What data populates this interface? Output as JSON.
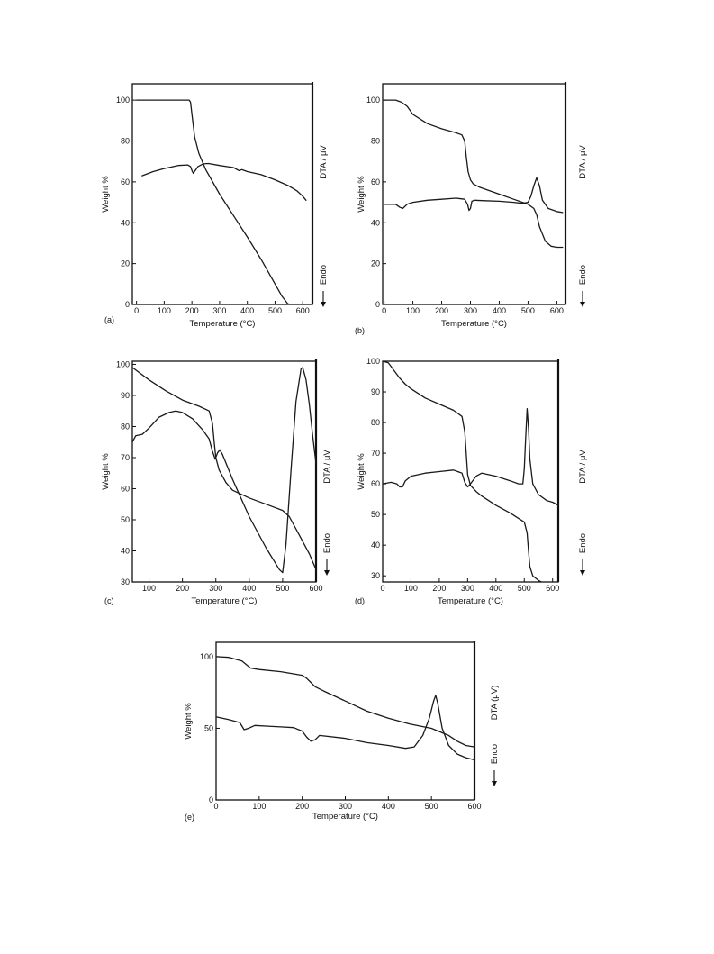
{
  "chart_data": [
    {
      "type": "line",
      "panel_label": "(a)",
      "xlabel": "Temperature (°C)",
      "ylabel": "Weight %",
      "right_label": "DTA / μV",
      "endo_label": "Endo",
      "xlim": [
        -15,
        635
      ],
      "ylim": [
        0,
        108
      ],
      "xticks": [
        0,
        100,
        200,
        300,
        400,
        500,
        600
      ],
      "yticks": [
        0,
        20,
        40,
        60,
        80,
        100
      ],
      "series": [
        {
          "kind": "tga",
          "x": [
            0,
            100,
            190,
            195,
            200,
            210,
            225,
            250,
            300,
            350,
            400,
            450,
            500,
            525,
            545,
            552
          ],
          "y": [
            100,
            100,
            100,
            99,
            93,
            82,
            74,
            66,
            54,
            43.5,
            33,
            22,
            10,
            4,
            0.5,
            0
          ]
        },
        {
          "kind": "dta",
          "x": [
            20,
            60,
            100,
            150,
            185,
            195,
            200,
            205,
            212,
            222,
            240,
            260,
            300,
            350,
            370,
            380,
            400,
            450,
            500,
            550,
            580,
            600,
            612
          ],
          "y": [
            63,
            65,
            66.5,
            68,
            68.3,
            67.5,
            65.5,
            64.2,
            65.5,
            67.5,
            68.8,
            69,
            68,
            67,
            65.5,
            66,
            65,
            63.5,
            61,
            58,
            55.5,
            53,
            51
          ]
        }
      ]
    },
    {
      "type": "line",
      "panel_label": "(b)",
      "xlabel": "Temperature (°C)",
      "ylabel": "Weight %",
      "right_label": "DTA / μV",
      "endo_label": "Endo",
      "xlim": [
        -5,
        630
      ],
      "ylim": [
        0,
        108
      ],
      "xticks": [
        0,
        100,
        200,
        300,
        400,
        500,
        600
      ],
      "yticks": [
        0,
        20,
        40,
        60,
        80,
        100
      ],
      "series": [
        {
          "kind": "tga",
          "x": [
            0,
            40,
            60,
            80,
            100,
            150,
            200,
            250,
            270,
            280,
            285,
            292,
            300,
            310,
            330,
            400,
            450,
            500,
            520,
            530,
            540,
            560,
            580,
            600,
            620
          ],
          "y": [
            100,
            100,
            99,
            97,
            93,
            88.5,
            86,
            84,
            83,
            80,
            73,
            65,
            61,
            59,
            57.5,
            54,
            51.5,
            49,
            47,
            44,
            38,
            31,
            28.5,
            28,
            28
          ]
        },
        {
          "kind": "dta",
          "x": [
            0,
            40,
            55,
            65,
            80,
            100,
            150,
            200,
            250,
            280,
            290,
            295,
            300,
            305,
            315,
            350,
            400,
            450,
            480,
            500,
            510,
            520,
            530,
            540,
            550,
            570,
            600,
            620
          ],
          "y": [
            49,
            49,
            47.5,
            47,
            49,
            50,
            51,
            51.5,
            52,
            51.5,
            49,
            46,
            47,
            50.5,
            51,
            50.8,
            50.5,
            50,
            49.5,
            50,
            53,
            58,
            62,
            58,
            51,
            47,
            45.5,
            45
          ]
        }
      ]
    },
    {
      "type": "line",
      "panel_label": "(c)",
      "xlabel": "Temperature (°C)",
      "ylabel": "Weight %",
      "right_label": "DTA / μV",
      "endo_label": "Endo",
      "xlim": [
        50,
        600
      ],
      "ylim": [
        30,
        101
      ],
      "xticks": [
        100,
        200,
        300,
        400,
        500,
        600
      ],
      "yticks": [
        30,
        40,
        50,
        60,
        70,
        80,
        90,
        100
      ],
      "series": [
        {
          "kind": "tga",
          "x": [
            50,
            100,
            150,
            200,
            250,
            280,
            290,
            295,
            300,
            310,
            330,
            350,
            400,
            450,
            500,
            520,
            550,
            580,
            600
          ],
          "y": [
            99,
            95,
            91.5,
            88.5,
            86.5,
            85,
            81,
            75,
            70,
            66,
            62,
            59.5,
            57,
            55,
            53,
            51,
            45,
            39,
            34
          ]
        },
        {
          "kind": "dta",
          "x": [
            50,
            60,
            80,
            100,
            130,
            160,
            180,
            200,
            230,
            260,
            280,
            290,
            298,
            305,
            312,
            320,
            350,
            400,
            450,
            490,
            500,
            510,
            525,
            540,
            555,
            560,
            570,
            580,
            590,
            600
          ],
          "y": [
            75,
            77,
            77.5,
            79.5,
            83,
            84.5,
            85,
            84.5,
            82.5,
            79,
            76,
            72,
            69.5,
            71.5,
            72.5,
            71,
            63,
            51,
            41,
            34,
            33,
            42,
            66,
            88,
            98.5,
            99,
            95,
            87,
            77,
            68
          ]
        }
      ]
    },
    {
      "type": "line",
      "panel_label": "(d)",
      "xlabel": "Temperature (°C)",
      "ylabel": "Weight %",
      "right_label": "DTA / μV",
      "endo_label": "Endo",
      "xlim": [
        0,
        620
      ],
      "ylim": [
        28,
        100
      ],
      "xticks": [
        0,
        100,
        200,
        300,
        400,
        500,
        600
      ],
      "yticks": [
        30,
        40,
        50,
        60,
        70,
        80,
        90,
        100
      ],
      "series": [
        {
          "kind": "tga",
          "x": [
            0,
            20,
            40,
            60,
            80,
            100,
            150,
            200,
            250,
            280,
            290,
            295,
            300,
            310,
            330,
            350,
            400,
            450,
            500,
            510,
            515,
            520,
            530,
            550,
            560
          ],
          "y": [
            100,
            99.5,
            97,
            94.5,
            92.5,
            91,
            88,
            86,
            84,
            82,
            77,
            70,
            63,
            59.5,
            57.5,
            56,
            53,
            50.5,
            47.5,
            44,
            38,
            33,
            30,
            28.5,
            28
          ]
        },
        {
          "kind": "dta",
          "x": [
            0,
            30,
            50,
            60,
            70,
            80,
            100,
            150,
            200,
            250,
            280,
            290,
            300,
            310,
            330,
            350,
            400,
            450,
            480,
            495,
            500,
            505,
            510,
            515,
            520,
            530,
            550,
            580,
            600,
            620
          ],
          "y": [
            60,
            60.5,
            60,
            59,
            59,
            61,
            62.5,
            63.5,
            64,
            64.5,
            63.5,
            60.5,
            59,
            60,
            62.5,
            63.5,
            62.5,
            61,
            60,
            60,
            65,
            75,
            84.5,
            78,
            68,
            60,
            56.5,
            54.5,
            54,
            53
          ]
        }
      ]
    },
    {
      "type": "line",
      "panel_label": "(e)",
      "xlabel": "Temperature (°C)",
      "ylabel": "Weight %",
      "right_label": "DTA (μV)",
      "endo_label": "Endo",
      "xlim": [
        0,
        600
      ],
      "ylim": [
        0,
        110
      ],
      "xticks": [
        0,
        100,
        200,
        300,
        400,
        500,
        600
      ],
      "yticks": [
        0,
        50,
        100
      ],
      "series": [
        {
          "kind": "tga",
          "x": [
            0,
            30,
            60,
            80,
            100,
            150,
            200,
            210,
            220,
            230,
            250,
            300,
            350,
            400,
            450,
            500,
            540,
            560,
            580,
            600
          ],
          "y": [
            100,
            99.5,
            97,
            92,
            91,
            89.5,
            87,
            85,
            82,
            79,
            76,
            69,
            62,
            57,
            53,
            50,
            45,
            41,
            38,
            37
          ]
        },
        {
          "kind": "dta",
          "x": [
            0,
            30,
            55,
            65,
            75,
            90,
            120,
            150,
            180,
            200,
            210,
            220,
            230,
            240,
            300,
            350,
            400,
            440,
            460,
            480,
            495,
            505,
            510,
            515,
            525,
            540,
            560,
            580,
            600
          ],
          "y": [
            58,
            56,
            54,
            49,
            50,
            52,
            51.5,
            51,
            50.5,
            48,
            44,
            41,
            42,
            45,
            43,
            40,
            38,
            36,
            37,
            45,
            57,
            69,
            73,
            67,
            50,
            38,
            32,
            29.5,
            28
          ]
        }
      ]
    }
  ]
}
